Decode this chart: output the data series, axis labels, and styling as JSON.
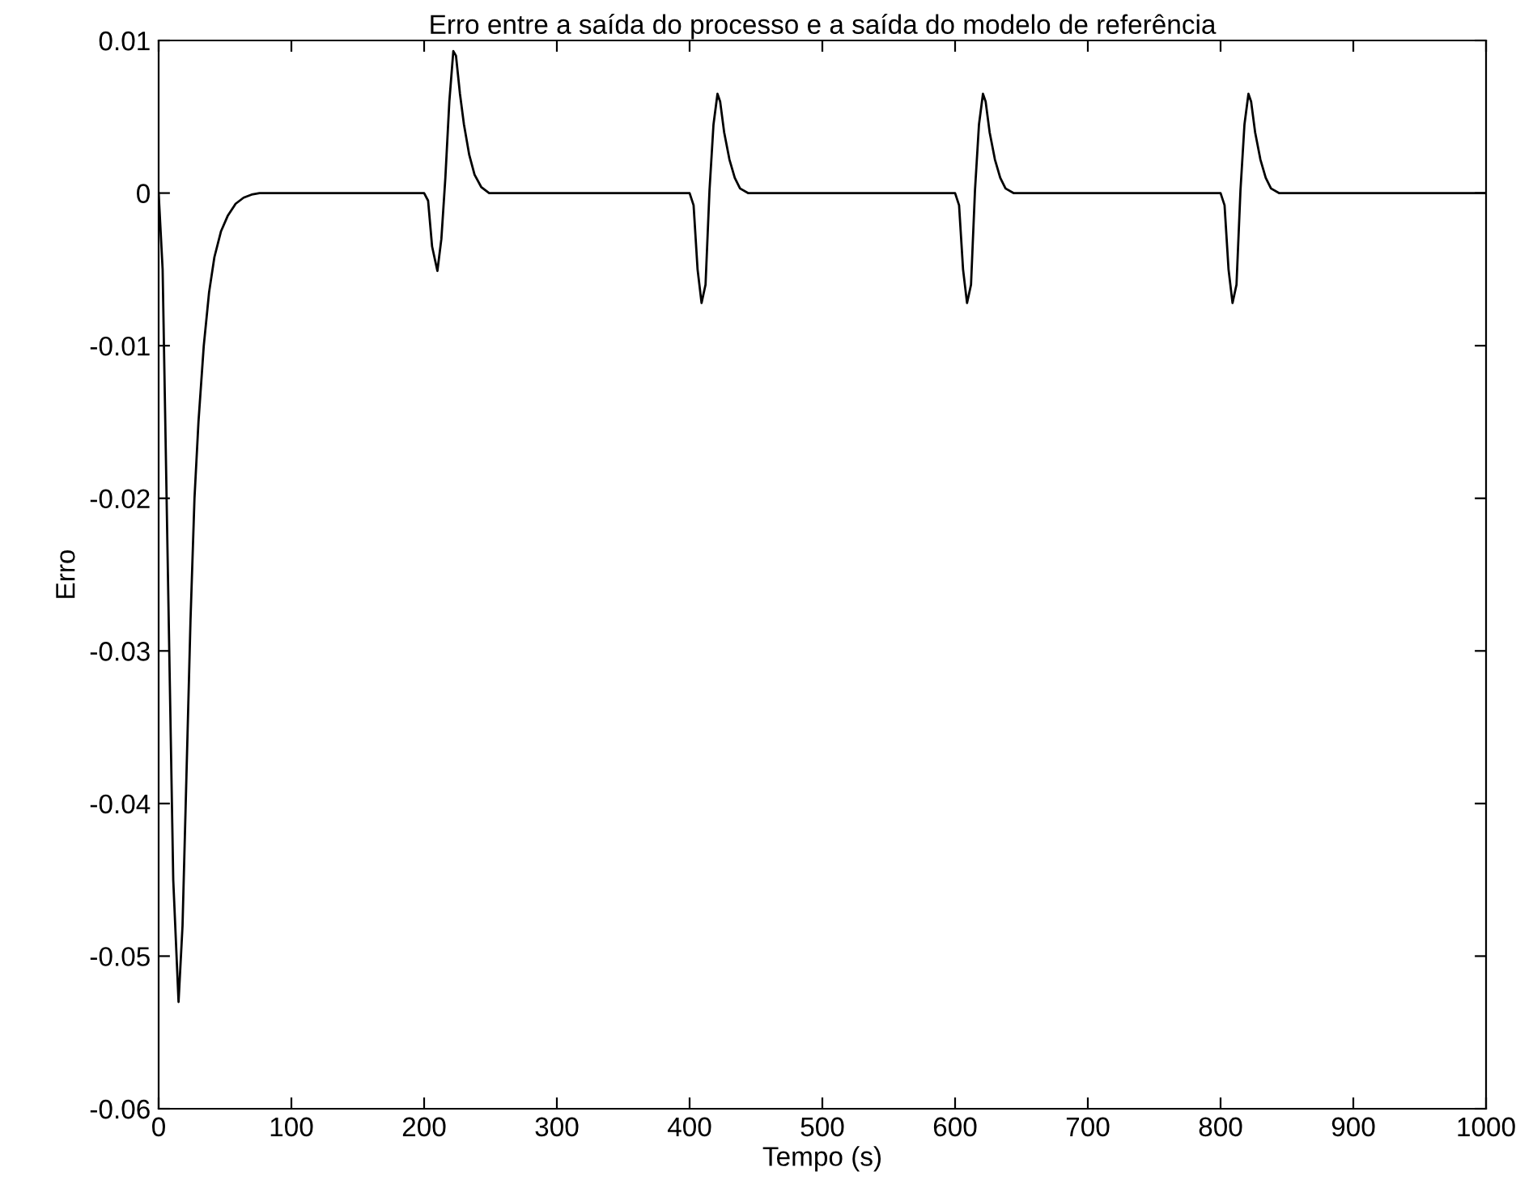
{
  "chart_data": {
    "type": "line",
    "title": "Erro entre a saída do processo e a saída do modelo de referência",
    "xlabel": "Tempo (s)",
    "ylabel": "Erro",
    "xlim": [
      0,
      1000
    ],
    "xticks": [
      0,
      100,
      200,
      300,
      400,
      500,
      600,
      700,
      800,
      900,
      1000
    ],
    "ylim": [
      -0.06,
      0.01
    ],
    "yticks": [
      -0.06,
      -0.05,
      -0.04,
      -0.03,
      -0.02,
      -0.01,
      0,
      0.01
    ],
    "grid": false,
    "legend": false,
    "series": [
      {
        "color": "#000000",
        "x": [
          0,
          3,
          7,
          11,
          15,
          18,
          21,
          24,
          27,
          30,
          34,
          38,
          42,
          47,
          52,
          58,
          64,
          70,
          76,
          200,
          203,
          206,
          210,
          213,
          216,
          219,
          222,
          224,
          227,
          230,
          234,
          238,
          243,
          249,
          400,
          403,
          406,
          409,
          412,
          415,
          418,
          421,
          423,
          426,
          430,
          434,
          438,
          444,
          600,
          603,
          606,
          609,
          612,
          615,
          618,
          621,
          623,
          626,
          630,
          634,
          638,
          644,
          800,
          803,
          806,
          809,
          812,
          815,
          818,
          821,
          823,
          826,
          830,
          834,
          838,
          844,
          1000
        ],
        "values": [
          0,
          -0.005,
          -0.025,
          -0.045,
          -0.053,
          -0.048,
          -0.038,
          -0.028,
          -0.02,
          -0.015,
          -0.01,
          -0.0065,
          -0.0042,
          -0.0025,
          -0.0015,
          -0.0007,
          -0.0003,
          -0.0001,
          0,
          0,
          -0.0005,
          -0.0035,
          -0.0051,
          -0.003,
          0.001,
          0.006,
          0.0093,
          0.009,
          0.0065,
          0.0045,
          0.0025,
          0.0012,
          0.0004,
          0,
          0,
          -0.0008,
          -0.005,
          -0.0072,
          -0.006,
          0.0002,
          0.0045,
          0.0065,
          0.006,
          0.004,
          0.0022,
          0.001,
          0.0003,
          0,
          0,
          -0.0008,
          -0.005,
          -0.0072,
          -0.006,
          0.0002,
          0.0045,
          0.0065,
          0.006,
          0.004,
          0.0022,
          0.001,
          0.0003,
          0,
          0,
          -0.0008,
          -0.005,
          -0.0072,
          -0.006,
          0.0002,
          0.0045,
          0.0065,
          0.006,
          0.004,
          0.0022,
          0.001,
          0.0003,
          0,
          0
        ]
      }
    ]
  }
}
